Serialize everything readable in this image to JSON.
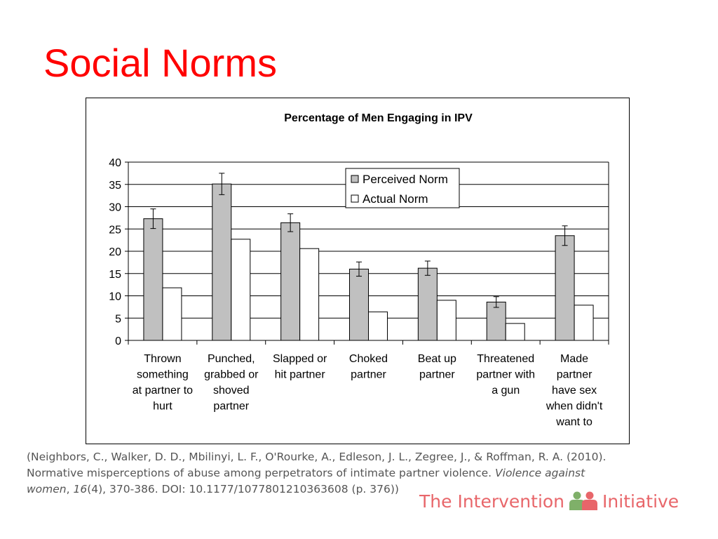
{
  "slide": {
    "title": "Social Norms"
  },
  "chart_data": {
    "type": "bar",
    "title": "Percentage of Men Engaging in IPV",
    "categories": [
      [
        "Thrown",
        "something",
        "at partner to",
        "hurt"
      ],
      [
        "Punched,",
        "grabbed or",
        "shoved",
        "partner"
      ],
      [
        "Slapped or",
        "hit partner"
      ],
      [
        "Choked",
        "partner"
      ],
      [
        "Beat up",
        "partner"
      ],
      [
        "Threatened",
        "partner with",
        "a gun"
      ],
      [
        "Made",
        "partner",
        "have sex",
        "when didn't",
        "want to"
      ]
    ],
    "series": [
      {
        "name": "Perceived Norm",
        "values": [
          27.3,
          35.1,
          26.4,
          16.0,
          16.2,
          8.6,
          23.5
        ],
        "error": [
          2.2,
          2.4,
          2.0,
          1.6,
          1.6,
          1.2,
          2.2
        ],
        "color": "#c0c0c0"
      },
      {
        "name": "Actual Norm",
        "values": [
          11.8,
          22.7,
          20.6,
          6.4,
          9.0,
          3.8,
          7.9
        ],
        "color": "#ffffff"
      }
    ],
    "ylim": [
      0,
      40
    ],
    "yticks": [
      0,
      5,
      10,
      15,
      20,
      25,
      30,
      35,
      40
    ],
    "grid": true,
    "legend_position": "top-right"
  },
  "citation": {
    "line1": "(Neighbors, C., Walker, D. D., Mbilinyi, L. F., O'Rourke, A., Edleson, J. L., Zegree, J., & Roffman, R. A. (2010).",
    "line2_prefix": "Normative misperceptions of abuse among perpetrators of intimate partner violence. ",
    "journal": "Violence against",
    "journal2": "women",
    "sep": ", ",
    "volume": "16",
    "line3_rest": "(4), 370-386.  DOI: 10.1177/1077801210363608  (p. 376))"
  },
  "brand": {
    "part1": "The Intervention",
    "part2": "Initiative",
    "logo": "two-people-icon",
    "color": "#e8666a",
    "logo_color_left": "#7fb069",
    "logo_color_right": "#e8666a"
  }
}
